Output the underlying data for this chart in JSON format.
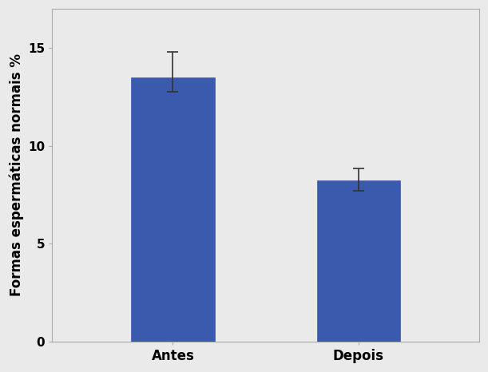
{
  "categories": [
    "Antes",
    "Depois"
  ],
  "values": [
    13.5,
    8.25
  ],
  "errors_upper": [
    1.3,
    0.6
  ],
  "errors_lower": [
    0.75,
    0.55
  ],
  "bar_color": "#3A5AAD",
  "bar_edgecolor": "#3A5AAD",
  "ylabel": "Formas espermáticas normais %",
  "ylim": [
    0,
    17
  ],
  "yticks": [
    0,
    5,
    10,
    15
  ],
  "plot_bg_color": "#EAEAEA",
  "fig_bg_color": "#EAEAEA",
  "bar_width": 0.45,
  "error_capsize": 5,
  "error_color": "#333333",
  "ylabel_fontsize": 12,
  "tick_fontsize": 11,
  "xlabel_fontsize": 12,
  "spine_color": "#AAAAAA",
  "border_color": "#AAAAAA"
}
